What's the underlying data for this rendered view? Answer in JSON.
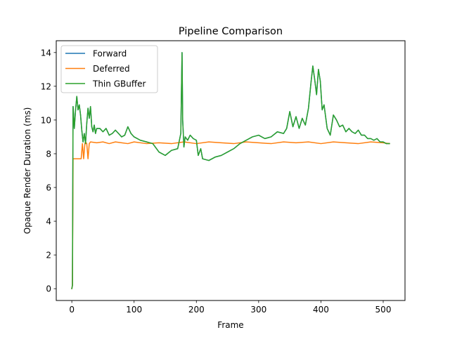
{
  "chart_data": {
    "type": "line",
    "title": "Pipeline Comparison",
    "xlabel": "Frame",
    "ylabel": "Opaque Render Duration (ms)",
    "xlim": [
      -25,
      535
    ],
    "ylim": [
      -0.7,
      14.7
    ],
    "xticks": [
      0,
      100,
      200,
      300,
      400,
      500
    ],
    "yticks": [
      0,
      2,
      4,
      6,
      8,
      10,
      12,
      14
    ],
    "grid": false,
    "legend_position": "upper-left",
    "series": [
      {
        "name": "Forward",
        "color": "#1f77b4",
        "points": [
          [
            0,
            0
          ],
          [
            1,
            0.2
          ],
          [
            2,
            10.8
          ],
          [
            3,
            10.2
          ],
          [
            4,
            9.5
          ],
          [
            6,
            10.6
          ],
          [
            8,
            11.4
          ],
          [
            10,
            10.6
          ],
          [
            12,
            10.9
          ],
          [
            14,
            10.3
          ],
          [
            16,
            9.4
          ],
          [
            18,
            8.7
          ],
          [
            20,
            9.2
          ],
          [
            22,
            8.6
          ],
          [
            24,
            9.8
          ],
          [
            26,
            10.7
          ],
          [
            28,
            10.1
          ],
          [
            30,
            10.8
          ],
          [
            32,
            9.6
          ],
          [
            34,
            9.3
          ],
          [
            36,
            9.7
          ],
          [
            38,
            9.2
          ],
          [
            40,
            9.5
          ],
          [
            45,
            9.5
          ],
          [
            50,
            9.3
          ],
          [
            55,
            9.5
          ],
          [
            60,
            9.1
          ],
          [
            65,
            9.2
          ],
          [
            70,
            9.4
          ],
          [
            75,
            9.2
          ],
          [
            80,
            9.0
          ],
          [
            85,
            9.1
          ],
          [
            90,
            9.6
          ],
          [
            95,
            9.2
          ],
          [
            100,
            9.0
          ],
          [
            110,
            8.8
          ],
          [
            120,
            8.7
          ],
          [
            130,
            8.6
          ],
          [
            140,
            8.1
          ],
          [
            150,
            7.9
          ],
          [
            160,
            8.2
          ],
          [
            170,
            8.3
          ],
          [
            175,
            9.2
          ],
          [
            177,
            14.0
          ],
          [
            178,
            10.0
          ],
          [
            180,
            8.4
          ],
          [
            182,
            9.0
          ],
          [
            186,
            8.8
          ],
          [
            190,
            9.1
          ],
          [
            195,
            8.9
          ],
          [
            200,
            8.8
          ],
          [
            203,
            7.9
          ],
          [
            207,
            8.3
          ],
          [
            210,
            7.7
          ],
          [
            220,
            7.6
          ],
          [
            230,
            7.8
          ],
          [
            240,
            7.9
          ],
          [
            250,
            8.1
          ],
          [
            260,
            8.3
          ],
          [
            270,
            8.6
          ],
          [
            280,
            8.8
          ],
          [
            290,
            9.0
          ],
          [
            300,
            9.1
          ],
          [
            310,
            8.9
          ],
          [
            320,
            9.0
          ],
          [
            330,
            9.3
          ],
          [
            340,
            9.2
          ],
          [
            345,
            9.5
          ],
          [
            350,
            10.5
          ],
          [
            355,
            9.6
          ],
          [
            360,
            10.2
          ],
          [
            365,
            9.5
          ],
          [
            370,
            10.1
          ],
          [
            375,
            9.7
          ],
          [
            380,
            10.7
          ],
          [
            384,
            12.2
          ],
          [
            387,
            13.2
          ],
          [
            390,
            12.4
          ],
          [
            393,
            11.5
          ],
          [
            396,
            13.0
          ],
          [
            399,
            12.3
          ],
          [
            402,
            10.6
          ],
          [
            405,
            10.9
          ],
          [
            410,
            9.5
          ],
          [
            415,
            9.1
          ],
          [
            420,
            10.3
          ],
          [
            425,
            10.0
          ],
          [
            430,
            9.6
          ],
          [
            435,
            9.7
          ],
          [
            440,
            9.3
          ],
          [
            445,
            9.5
          ],
          [
            450,
            9.3
          ],
          [
            455,
            9.2
          ],
          [
            460,
            9.4
          ],
          [
            465,
            9.1
          ],
          [
            470,
            9.1
          ],
          [
            475,
            8.9
          ],
          [
            480,
            8.9
          ],
          [
            485,
            8.8
          ],
          [
            490,
            8.9
          ],
          [
            495,
            8.7
          ],
          [
            500,
            8.7
          ],
          [
            505,
            8.6
          ],
          [
            510,
            8.6
          ]
        ]
      },
      {
        "name": "Deferred",
        "color": "#ff7f0e",
        "points": [
          [
            0,
            0
          ],
          [
            1,
            0.2
          ],
          [
            2,
            7.7
          ],
          [
            5,
            7.7
          ],
          [
            10,
            7.7
          ],
          [
            15,
            7.7
          ],
          [
            17,
            8.6
          ],
          [
            19,
            7.7
          ],
          [
            21,
            8.6
          ],
          [
            22,
            8.7
          ],
          [
            24,
            8.6
          ],
          [
            26,
            7.7
          ],
          [
            28,
            8.6
          ],
          [
            30,
            8.7
          ],
          [
            40,
            8.65
          ],
          [
            50,
            8.7
          ],
          [
            60,
            8.6
          ],
          [
            70,
            8.7
          ],
          [
            80,
            8.65
          ],
          [
            90,
            8.6
          ],
          [
            100,
            8.7
          ],
          [
            120,
            8.6
          ],
          [
            140,
            8.65
          ],
          [
            160,
            8.6
          ],
          [
            180,
            8.7
          ],
          [
            200,
            8.6
          ],
          [
            220,
            8.7
          ],
          [
            240,
            8.65
          ],
          [
            260,
            8.6
          ],
          [
            280,
            8.7
          ],
          [
            300,
            8.65
          ],
          [
            320,
            8.6
          ],
          [
            340,
            8.7
          ],
          [
            360,
            8.65
          ],
          [
            380,
            8.7
          ],
          [
            400,
            8.6
          ],
          [
            420,
            8.7
          ],
          [
            440,
            8.65
          ],
          [
            460,
            8.6
          ],
          [
            480,
            8.7
          ],
          [
            500,
            8.65
          ],
          [
            510,
            8.6
          ]
        ]
      },
      {
        "name": "Thin GBuffer",
        "color": "#2ca02c",
        "points": [
          [
            0,
            0
          ],
          [
            1,
            0.2
          ],
          [
            2,
            10.8
          ],
          [
            3,
            10.2
          ],
          [
            4,
            9.5
          ],
          [
            6,
            10.6
          ],
          [
            8,
            11.4
          ],
          [
            10,
            10.6
          ],
          [
            12,
            10.9
          ],
          [
            14,
            10.3
          ],
          [
            16,
            9.4
          ],
          [
            18,
            8.7
          ],
          [
            20,
            9.2
          ],
          [
            22,
            8.6
          ],
          [
            24,
            9.8
          ],
          [
            26,
            10.7
          ],
          [
            28,
            10.1
          ],
          [
            30,
            10.8
          ],
          [
            32,
            9.6
          ],
          [
            34,
            9.3
          ],
          [
            36,
            9.7
          ],
          [
            38,
            9.2
          ],
          [
            40,
            9.5
          ],
          [
            45,
            9.5
          ],
          [
            50,
            9.3
          ],
          [
            55,
            9.5
          ],
          [
            60,
            9.1
          ],
          [
            65,
            9.2
          ],
          [
            70,
            9.4
          ],
          [
            75,
            9.2
          ],
          [
            80,
            9.0
          ],
          [
            85,
            9.1
          ],
          [
            90,
            9.6
          ],
          [
            95,
            9.2
          ],
          [
            100,
            9.0
          ],
          [
            110,
            8.8
          ],
          [
            120,
            8.7
          ],
          [
            130,
            8.6
          ],
          [
            140,
            8.1
          ],
          [
            150,
            7.9
          ],
          [
            160,
            8.2
          ],
          [
            170,
            8.3
          ],
          [
            175,
            9.2
          ],
          [
            177,
            14.0
          ],
          [
            178,
            10.0
          ],
          [
            180,
            8.4
          ],
          [
            182,
            9.0
          ],
          [
            186,
            8.8
          ],
          [
            190,
            9.1
          ],
          [
            195,
            8.9
          ],
          [
            200,
            8.8
          ],
          [
            203,
            7.9
          ],
          [
            207,
            8.3
          ],
          [
            210,
            7.7
          ],
          [
            220,
            7.6
          ],
          [
            230,
            7.8
          ],
          [
            240,
            7.9
          ],
          [
            250,
            8.1
          ],
          [
            260,
            8.3
          ],
          [
            270,
            8.6
          ],
          [
            280,
            8.8
          ],
          [
            290,
            9.0
          ],
          [
            300,
            9.1
          ],
          [
            310,
            8.9
          ],
          [
            320,
            9.0
          ],
          [
            330,
            9.3
          ],
          [
            340,
            9.2
          ],
          [
            345,
            9.5
          ],
          [
            350,
            10.5
          ],
          [
            355,
            9.6
          ],
          [
            360,
            10.2
          ],
          [
            365,
            9.5
          ],
          [
            370,
            10.1
          ],
          [
            375,
            9.7
          ],
          [
            380,
            10.7
          ],
          [
            384,
            12.2
          ],
          [
            387,
            13.2
          ],
          [
            390,
            12.4
          ],
          [
            393,
            11.5
          ],
          [
            396,
            13.0
          ],
          [
            399,
            12.3
          ],
          [
            402,
            10.6
          ],
          [
            405,
            10.9
          ],
          [
            410,
            9.5
          ],
          [
            415,
            9.1
          ],
          [
            420,
            10.3
          ],
          [
            425,
            10.0
          ],
          [
            430,
            9.6
          ],
          [
            435,
            9.7
          ],
          [
            440,
            9.3
          ],
          [
            445,
            9.5
          ],
          [
            450,
            9.3
          ],
          [
            455,
            9.2
          ],
          [
            460,
            9.4
          ],
          [
            465,
            9.1
          ],
          [
            470,
            9.1
          ],
          [
            475,
            8.9
          ],
          [
            480,
            8.9
          ],
          [
            485,
            8.8
          ],
          [
            490,
            8.9
          ],
          [
            495,
            8.7
          ],
          [
            500,
            8.7
          ],
          [
            505,
            8.6
          ],
          [
            510,
            8.6
          ]
        ]
      }
    ]
  }
}
